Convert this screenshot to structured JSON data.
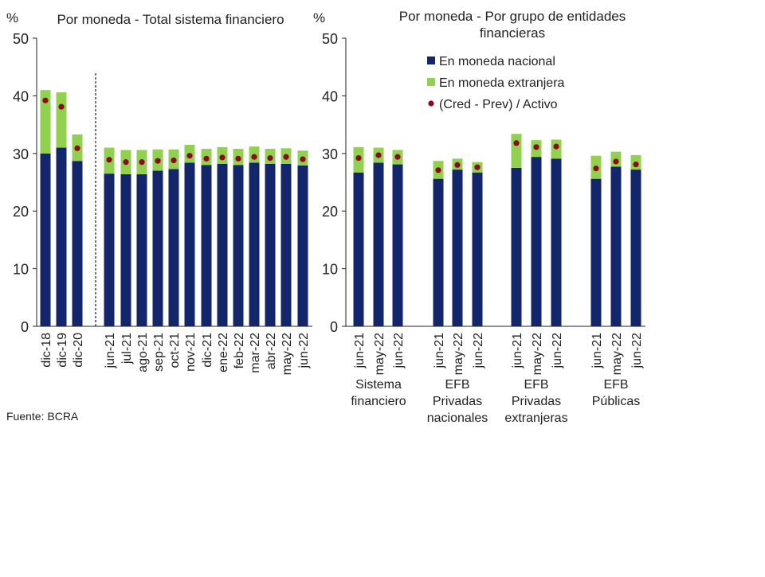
{
  "source": "Fuente: BCRA",
  "colors": {
    "nacional": "#14266b",
    "extranjera": "#92d050",
    "ratio": "#8b0a1e",
    "axis": "#222222"
  },
  "chart_data": [
    {
      "type": "bar",
      "stacked": true,
      "title": "Por moneda - Total sistema financiero",
      "ylabel": "%",
      "ylim": [
        0,
        50
      ],
      "yticks": [
        0,
        10,
        20,
        30,
        40,
        50
      ],
      "grid": false,
      "categories": [
        "dic-18",
        "dic-19",
        "dic-20",
        "jun-21",
        "jul-21",
        "ago-21",
        "sep-21",
        "oct-21",
        "nov-21",
        "dic-21",
        "ene-22",
        "feb-22",
        "mar-22",
        "abr-22",
        "may-22",
        "jun-22"
      ],
      "series": [
        {
          "name": "En moneda nacional",
          "kind": "bar",
          "values": [
            30.0,
            31.0,
            28.7,
            26.5,
            26.4,
            26.4,
            27.0,
            27.3,
            28.4,
            28.0,
            28.2,
            28.0,
            28.4,
            28.2,
            28.2,
            27.9
          ]
        },
        {
          "name": "En moneda extranjera",
          "kind": "bar",
          "values": [
            11.0,
            9.6,
            4.6,
            4.5,
            4.2,
            4.2,
            3.7,
            3.4,
            3.1,
            2.8,
            2.9,
            2.8,
            2.8,
            2.6,
            2.7,
            2.6
          ]
        },
        {
          "name": "(Cred - Prev) / Activo",
          "kind": "point",
          "values": [
            39.2,
            38.1,
            30.9,
            28.9,
            28.5,
            28.5,
            28.7,
            28.8,
            29.6,
            29.1,
            29.3,
            29.1,
            29.4,
            29.2,
            29.4,
            29.0
          ]
        }
      ]
    },
    {
      "type": "bar",
      "stacked": true,
      "title": "Por moneda - Por grupo de entidades financieras",
      "title_lines": [
        "Por moneda - Por grupo de entidades",
        "financieras"
      ],
      "ylabel": "%",
      "ylim": [
        0,
        50
      ],
      "yticks": [
        0,
        10,
        20,
        30,
        40,
        50
      ],
      "grid": false,
      "legend_position": "top",
      "groups": [
        {
          "label_lines": [
            "Sistema",
            "financiero"
          ],
          "categories": [
            "jun-21",
            "may-22",
            "jun-22"
          ]
        },
        {
          "label_lines": [
            "EFB",
            "Privadas",
            "nacionales"
          ],
          "categories": [
            "jun-21",
            "may-22",
            "jun-22"
          ]
        },
        {
          "label_lines": [
            "EFB",
            "Privadas",
            "extranjeras"
          ],
          "categories": [
            "jun-21",
            "may-22",
            "jun-22"
          ]
        },
        {
          "label_lines": [
            "EFB",
            "Públicas"
          ],
          "categories": [
            "jun-21",
            "may-22",
            "jun-22"
          ]
        }
      ],
      "series": [
        {
          "name": "En moneda nacional",
          "kind": "bar",
          "values": [
            [
              26.7,
              28.4,
              28.1
            ],
            [
              25.6,
              27.2,
              26.7
            ],
            [
              27.5,
              29.4,
              29.1
            ],
            [
              25.6,
              27.7,
              27.2
            ]
          ]
        },
        {
          "name": "En moneda extranjera",
          "kind": "bar",
          "values": [
            [
              4.4,
              2.6,
              2.5
            ],
            [
              3.1,
              1.9,
              1.8
            ],
            [
              5.9,
              2.9,
              3.3
            ],
            [
              4.0,
              2.6,
              2.5
            ]
          ]
        },
        {
          "name": "(Cred - Prev) / Activo",
          "kind": "point",
          "values": [
            [
              29.2,
              29.7,
              29.4
            ],
            [
              27.1,
              28.0,
              27.6
            ],
            [
              31.8,
              31.1,
              31.2
            ],
            [
              27.4,
              28.6,
              28.1
            ]
          ]
        }
      ]
    }
  ]
}
